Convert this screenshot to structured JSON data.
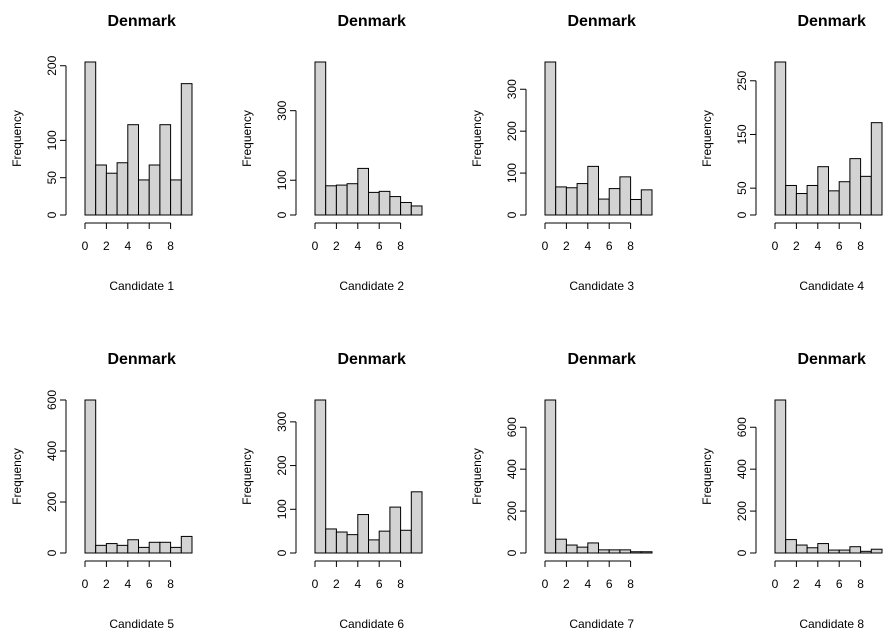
{
  "chart_data": [
    {
      "type": "bar",
      "title": "Denmark",
      "xlabel": "Candidate 1",
      "ylabel": "Frequency",
      "bin_edges": [
        0,
        1,
        2,
        3,
        4,
        5,
        6,
        7,
        8,
        9,
        10
      ],
      "values": [
        205,
        67,
        56,
        70,
        121,
        47,
        67,
        121,
        47,
        176
      ],
      "xlim": [
        0,
        10
      ],
      "ylim": [
        0,
        205
      ],
      "x_ticks": [
        0,
        2,
        4,
        6,
        8
      ],
      "y_ticks": [
        0,
        50,
        100,
        200
      ]
    },
    {
      "type": "bar",
      "title": "Denmark",
      "xlabel": "Candidate 2",
      "ylabel": "Frequency",
      "bin_edges": [
        0,
        1,
        2,
        3,
        4,
        5,
        6,
        7,
        8,
        9,
        10
      ],
      "values": [
        440,
        84,
        86,
        90,
        134,
        65,
        68,
        53,
        36,
        26
      ],
      "xlim": [
        0,
        10
      ],
      "ylim": [
        0,
        440
      ],
      "x_ticks": [
        0,
        2,
        4,
        6,
        8
      ],
      "y_ticks": [
        0,
        100,
        300
      ]
    },
    {
      "type": "bar",
      "title": "Denmark",
      "xlabel": "Candidate 3",
      "ylabel": "Frequency",
      "bin_edges": [
        0,
        1,
        2,
        3,
        4,
        5,
        6,
        7,
        8,
        9,
        10
      ],
      "values": [
        365,
        67,
        65,
        75,
        116,
        38,
        63,
        91,
        37,
        60
      ],
      "xlim": [
        0,
        10
      ],
      "ylim": [
        0,
        365
      ],
      "x_ticks": [
        0,
        2,
        4,
        6,
        8
      ],
      "y_ticks": [
        0,
        100,
        200,
        300
      ]
    },
    {
      "type": "bar",
      "title": "Denmark",
      "xlabel": "Candidate 4",
      "ylabel": "Frequency",
      "bin_edges": [
        0,
        1,
        2,
        3,
        4,
        5,
        6,
        7,
        8,
        9,
        10
      ],
      "values": [
        285,
        55,
        40,
        55,
        90,
        45,
        62,
        105,
        72,
        172
      ],
      "xlim": [
        0,
        10
      ],
      "ylim": [
        0,
        285
      ],
      "x_ticks": [
        0,
        2,
        4,
        6,
        8
      ],
      "y_ticks": [
        0,
        50,
        150,
        250
      ]
    },
    {
      "type": "bar",
      "title": "Denmark",
      "xlabel": "Candidate 5",
      "ylabel": "Frequency",
      "bin_edges": [
        0,
        1,
        2,
        3,
        4,
        5,
        6,
        7,
        8,
        9,
        10
      ],
      "values": [
        600,
        30,
        37,
        30,
        52,
        22,
        42,
        42,
        22,
        65
      ],
      "xlim": [
        0,
        10
      ],
      "ylim": [
        0,
        600
      ],
      "x_ticks": [
        0,
        2,
        4,
        6,
        8
      ],
      "y_ticks": [
        0,
        200,
        400,
        600
      ]
    },
    {
      "type": "bar",
      "title": "Denmark",
      "xlabel": "Candidate 6",
      "ylabel": "Frequency",
      "bin_edges": [
        0,
        1,
        2,
        3,
        4,
        5,
        6,
        7,
        8,
        9,
        10
      ],
      "values": [
        350,
        55,
        48,
        42,
        88,
        30,
        50,
        105,
        52,
        140
      ],
      "xlim": [
        0,
        10
      ],
      "ylim": [
        0,
        350
      ],
      "x_ticks": [
        0,
        2,
        4,
        6,
        8
      ],
      "y_ticks": [
        0,
        100,
        200,
        300
      ]
    },
    {
      "type": "bar",
      "title": "Denmark",
      "xlabel": "Candidate 7",
      "ylabel": "Frequency",
      "bin_edges": [
        0,
        1,
        2,
        3,
        4,
        5,
        6,
        7,
        8,
        9,
        10
      ],
      "values": [
        730,
        66,
        38,
        28,
        48,
        15,
        15,
        15,
        6,
        6
      ],
      "xlim": [
        0,
        10
      ],
      "ylim": [
        0,
        730
      ],
      "x_ticks": [
        0,
        2,
        4,
        6,
        8
      ],
      "y_ticks": [
        0,
        200,
        400,
        600
      ]
    },
    {
      "type": "bar",
      "title": "Denmark",
      "xlabel": "Candidate 8",
      "ylabel": "Frequency",
      "bin_edges": [
        0,
        1,
        2,
        3,
        4,
        5,
        6,
        7,
        8,
        9,
        10
      ],
      "values": [
        730,
        64,
        38,
        25,
        45,
        14,
        14,
        30,
        8,
        18
      ],
      "xlim": [
        0,
        10
      ],
      "ylim": [
        0,
        730
      ],
      "x_ticks": [
        0,
        2,
        4,
        6,
        8
      ],
      "y_ticks": [
        0,
        200,
        400,
        600
      ]
    }
  ]
}
